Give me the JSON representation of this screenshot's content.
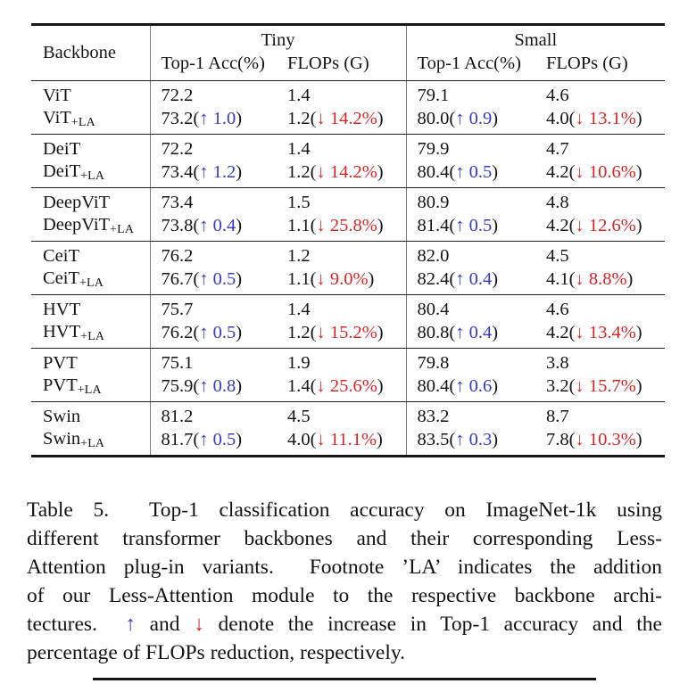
{
  "colors": {
    "up_blue": "#3b3bb4",
    "down_red": "#cc2a2a",
    "rule_black": "#151515",
    "divider_gray": "#7d7d7d"
  },
  "table": {
    "header": {
      "backbone": "Backbone",
      "tiny": "Tiny",
      "small": "Small",
      "acc": "Top-1 Acc(%)",
      "flops": "FLOPs (G)"
    },
    "groups": [
      {
        "lines": [
          {
            "backbone": [
              {
                "t": "ViT"
              }
            ],
            "cells": [
              [
                {
                  "t": "72.2"
                }
              ],
              [
                {
                  "t": "1.4"
                }
              ],
              [
                {
                  "t": "79.1"
                }
              ],
              [
                {
                  "t": "4.6"
                }
              ]
            ]
          },
          {
            "backbone": [
              {
                "t": "ViT"
              },
              {
                "t": "+LA",
                "s": "sub"
              }
            ],
            "cells": [
              [
                {
                  "t": "73.2("
                },
                {
                  "t": "↑ 1.0",
                  "s": "up"
                },
                {
                  "t": ")"
                }
              ],
              [
                {
                  "t": "1.2("
                },
                {
                  "t": "↓ 14.2%",
                  "s": "down"
                },
                {
                  "t": ")"
                }
              ],
              [
                {
                  "t": "80.0("
                },
                {
                  "t": "↑ 0.9",
                  "s": "up"
                },
                {
                  "t": ")"
                }
              ],
              [
                {
                  "t": "4.0("
                },
                {
                  "t": "↓ 13.1%",
                  "s": "down"
                },
                {
                  "t": ")"
                }
              ]
            ]
          }
        ]
      },
      {
        "lines": [
          {
            "backbone": [
              {
                "t": "DeiT"
              }
            ],
            "cells": [
              [
                {
                  "t": "72.2"
                }
              ],
              [
                {
                  "t": "1.4"
                }
              ],
              [
                {
                  "t": "79.9"
                }
              ],
              [
                {
                  "t": "4.7"
                }
              ]
            ]
          },
          {
            "backbone": [
              {
                "t": "DeiT"
              },
              {
                "t": "+LA",
                "s": "sub"
              }
            ],
            "cells": [
              [
                {
                  "t": "73.4("
                },
                {
                  "t": "↑ 1.2",
                  "s": "up"
                },
                {
                  "t": ")"
                }
              ],
              [
                {
                  "t": "1.2("
                },
                {
                  "t": "↓ 14.2%",
                  "s": "down"
                },
                {
                  "t": ")"
                }
              ],
              [
                {
                  "t": "80.4("
                },
                {
                  "t": "↑ 0.5",
                  "s": "up"
                },
                {
                  "t": ")"
                }
              ],
              [
                {
                  "t": "4.2("
                },
                {
                  "t": "↓ 10.6%",
                  "s": "down"
                },
                {
                  "t": ")"
                }
              ]
            ]
          }
        ]
      },
      {
        "lines": [
          {
            "backbone": [
              {
                "t": "DeepViT"
              }
            ],
            "cells": [
              [
                {
                  "t": "73.4"
                }
              ],
              [
                {
                  "t": "1.5"
                }
              ],
              [
                {
                  "t": "80.9"
                }
              ],
              [
                {
                  "t": "4.8"
                }
              ]
            ]
          },
          {
            "backbone": [
              {
                "t": "DeepViT"
              },
              {
                "t": "+LA",
                "s": "sub"
              }
            ],
            "cells": [
              [
                {
                  "t": "73.8("
                },
                {
                  "t": "↑ 0.4",
                  "s": "up"
                },
                {
                  "t": ")"
                }
              ],
              [
                {
                  "t": "1.1("
                },
                {
                  "t": "↓ 25.8%",
                  "s": "down"
                },
                {
                  "t": ")"
                }
              ],
              [
                {
                  "t": "81.4("
                },
                {
                  "t": "↑ 0.5",
                  "s": "up"
                },
                {
                  "t": ")"
                }
              ],
              [
                {
                  "t": "4.2("
                },
                {
                  "t": "↓ 12.6%",
                  "s": "down"
                },
                {
                  "t": ")"
                }
              ]
            ]
          }
        ]
      },
      {
        "lines": [
          {
            "backbone": [
              {
                "t": "CeiT"
              }
            ],
            "cells": [
              [
                {
                  "t": "76.2"
                }
              ],
              [
                {
                  "t": "1.2"
                }
              ],
              [
                {
                  "t": "82.0"
                }
              ],
              [
                {
                  "t": "4.5"
                }
              ]
            ]
          },
          {
            "backbone": [
              {
                "t": "CeiT"
              },
              {
                "t": "+LA",
                "s": "sub"
              }
            ],
            "cells": [
              [
                {
                  "t": "76.7("
                },
                {
                  "t": "↑ 0.5",
                  "s": "up"
                },
                {
                  "t": ")"
                }
              ],
              [
                {
                  "t": "1.1("
                },
                {
                  "t": "↓ 9.0%",
                  "s": "down"
                },
                {
                  "t": ")"
                }
              ],
              [
                {
                  "t": "82.4("
                },
                {
                  "t": "↑ 0.4",
                  "s": "up"
                },
                {
                  "t": ")"
                }
              ],
              [
                {
                  "t": "4.1("
                },
                {
                  "t": "↓ 8.8%",
                  "s": "down"
                },
                {
                  "t": ")"
                }
              ]
            ]
          }
        ]
      },
      {
        "lines": [
          {
            "backbone": [
              {
                "t": "HVT"
              }
            ],
            "cells": [
              [
                {
                  "t": "75.7"
                }
              ],
              [
                {
                  "t": "1.4"
                }
              ],
              [
                {
                  "t": "80.4"
                }
              ],
              [
                {
                  "t": "4.6"
                }
              ]
            ]
          },
          {
            "backbone": [
              {
                "t": "HVT"
              },
              {
                "t": "+LA",
                "s": "sub"
              }
            ],
            "cells": [
              [
                {
                  "t": "76.2("
                },
                {
                  "t": "↑ 0.5",
                  "s": "up"
                },
                {
                  "t": ")"
                }
              ],
              [
                {
                  "t": "1.2("
                },
                {
                  "t": "↓ 15.2%",
                  "s": "down"
                },
                {
                  "t": ")"
                }
              ],
              [
                {
                  "t": "80.8("
                },
                {
                  "t": "↑ 0.4",
                  "s": "up"
                },
                {
                  "t": ")"
                }
              ],
              [
                {
                  "t": "4.2("
                },
                {
                  "t": "↓ 13.4%",
                  "s": "down"
                },
                {
                  "t": ")"
                }
              ]
            ]
          }
        ]
      },
      {
        "lines": [
          {
            "backbone": [
              {
                "t": "PVT"
              }
            ],
            "cells": [
              [
                {
                  "t": "75.1"
                }
              ],
              [
                {
                  "t": "1.9"
                }
              ],
              [
                {
                  "t": "79.8"
                }
              ],
              [
                {
                  "t": "3.8"
                }
              ]
            ]
          },
          {
            "backbone": [
              {
                "t": "PVT"
              },
              {
                "t": "+LA",
                "s": "sub"
              }
            ],
            "cells": [
              [
                {
                  "t": "75.9("
                },
                {
                  "t": "↑ 0.8",
                  "s": "up"
                },
                {
                  "t": ")"
                }
              ],
              [
                {
                  "t": "1.4("
                },
                {
                  "t": "↓ 25.6%",
                  "s": "down"
                },
                {
                  "t": ")"
                }
              ],
              [
                {
                  "t": "80.4("
                },
                {
                  "t": "↑ 0.6",
                  "s": "up"
                },
                {
                  "t": ")"
                }
              ],
              [
                {
                  "t": "3.2("
                },
                {
                  "t": "↓ 15.7%",
                  "s": "down"
                },
                {
                  "t": ")"
                }
              ]
            ]
          }
        ]
      },
      {
        "lines": [
          {
            "backbone": [
              {
                "t": "Swin"
              }
            ],
            "cells": [
              [
                {
                  "t": "81.2"
                }
              ],
              [
                {
                  "t": "4.5"
                }
              ],
              [
                {
                  "t": "83.2"
                }
              ],
              [
                {
                  "t": "8.7"
                }
              ]
            ]
          },
          {
            "backbone": [
              {
                "t": "Swin"
              },
              {
                "t": "+LA",
                "s": "sub"
              }
            ],
            "cells": [
              [
                {
                  "t": "81.7("
                },
                {
                  "t": "↑ 0.5",
                  "s": "up"
                },
                {
                  "t": ")"
                }
              ],
              [
                {
                  "t": "4.0("
                },
                {
                  "t": "↓ 11.1%",
                  "s": "down"
                },
                {
                  "t": ")"
                }
              ],
              [
                {
                  "t": "83.5("
                },
                {
                  "t": "↑ 0.3",
                  "s": "up"
                },
                {
                  "t": ")"
                }
              ],
              [
                {
                  "t": "7.8("
                },
                {
                  "t": "↓ 10.3%",
                  "s": "down"
                },
                {
                  "t": ")"
                }
              ]
            ]
          }
        ]
      }
    ]
  },
  "caption": {
    "lines": [
      [
        {
          "t": "Table 5.  Top-1 classification accuracy on ImageNet-1k using"
        }
      ],
      [
        {
          "t": "different transformer backbones and their corresponding Less-"
        }
      ],
      [
        {
          "t": "Attention plug-in variants.  Footnote ’LA’ indicates the addition"
        }
      ],
      [
        {
          "t": "of our Less-Attention module to the respective backbone archi-"
        }
      ],
      [
        {
          "t": "tectures.  "
        },
        {
          "t": "↑",
          "s": "up"
        },
        {
          "t": " and "
        },
        {
          "t": "↓",
          "s": "down"
        },
        {
          "t": " denote the increase in Top-1 accuracy and the"
        }
      ],
      [
        {
          "t": "percentage of FLOPs reduction, respectively."
        }
      ]
    ]
  }
}
